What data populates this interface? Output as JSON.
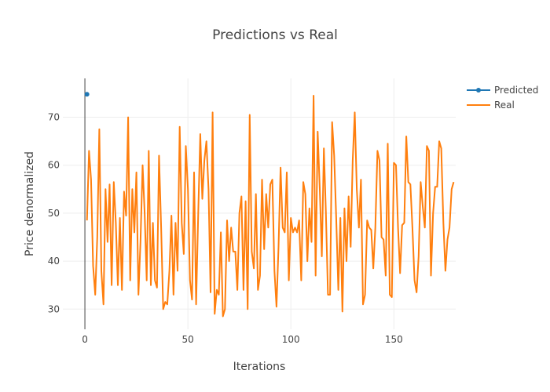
{
  "chart_data": {
    "type": "line",
    "title": "Predictions vs Real",
    "xlabel": "Iterations",
    "ylabel": "Price denormalized",
    "xlim": [
      -10.7,
      180
    ],
    "ylim": [
      25.8,
      78.1
    ],
    "xticks": [
      0,
      50,
      100,
      150
    ],
    "yticks": [
      30,
      40,
      50,
      60,
      70
    ],
    "grid": true,
    "legend_position": "top-right",
    "series": [
      {
        "name": "Predicted",
        "mode": "lines+markers",
        "color": "#1f77b4",
        "x": [
          1
        ],
        "y": [
          74.8
        ]
      },
      {
        "name": "Real",
        "mode": "lines",
        "color": "#ff7f0e",
        "x_start": 1,
        "y": [
          48.5,
          63,
          57,
          39,
          33,
          45,
          67.5,
          38,
          31,
          55,
          44,
          56,
          35,
          56.5,
          48,
          35,
          49,
          34,
          54.5,
          49.5,
          70,
          36,
          55,
          46,
          58.5,
          33,
          44,
          60,
          50,
          36,
          63,
          35,
          48,
          36,
          34.5,
          62,
          47,
          30,
          31.5,
          31,
          38,
          49.5,
          33,
          48,
          38,
          68,
          48,
          41.5,
          64,
          55,
          36,
          32,
          58.5,
          31,
          50,
          66.5,
          53,
          61,
          65,
          55,
          33.5,
          71,
          29,
          34,
          33,
          46,
          28.5,
          30,
          48.5,
          40,
          47,
          42,
          42,
          34,
          50,
          53.5,
          34,
          52.5,
          30,
          70.5,
          42,
          38.5,
          54,
          34,
          37,
          57,
          42.5,
          54,
          47,
          56,
          57,
          38,
          30.5,
          43,
          59.5,
          47,
          46,
          58.5,
          36,
          49,
          46,
          47,
          46,
          48.5,
          36,
          56.5,
          54,
          40,
          51,
          44,
          74.5,
          37,
          67,
          55,
          41,
          63.5,
          50,
          33,
          33,
          69,
          62,
          49,
          34,
          49,
          29.5,
          51,
          40,
          53.5,
          43,
          61,
          71,
          55,
          47,
          57,
          31,
          33,
          48.5,
          47,
          46.5,
          38.5,
          47,
          63,
          61,
          45,
          44.5,
          37,
          64.5,
          33,
          32.5,
          60.5,
          60,
          47,
          37.5,
          47.5,
          48,
          66,
          56.5,
          56,
          47,
          36,
          33.5,
          41,
          56.5,
          51.5,
          47,
          64,
          63,
          37,
          50,
          55.5,
          55.5,
          65,
          63.5,
          48,
          38,
          44.5,
          47,
          55,
          56.5
        ]
      }
    ]
  }
}
